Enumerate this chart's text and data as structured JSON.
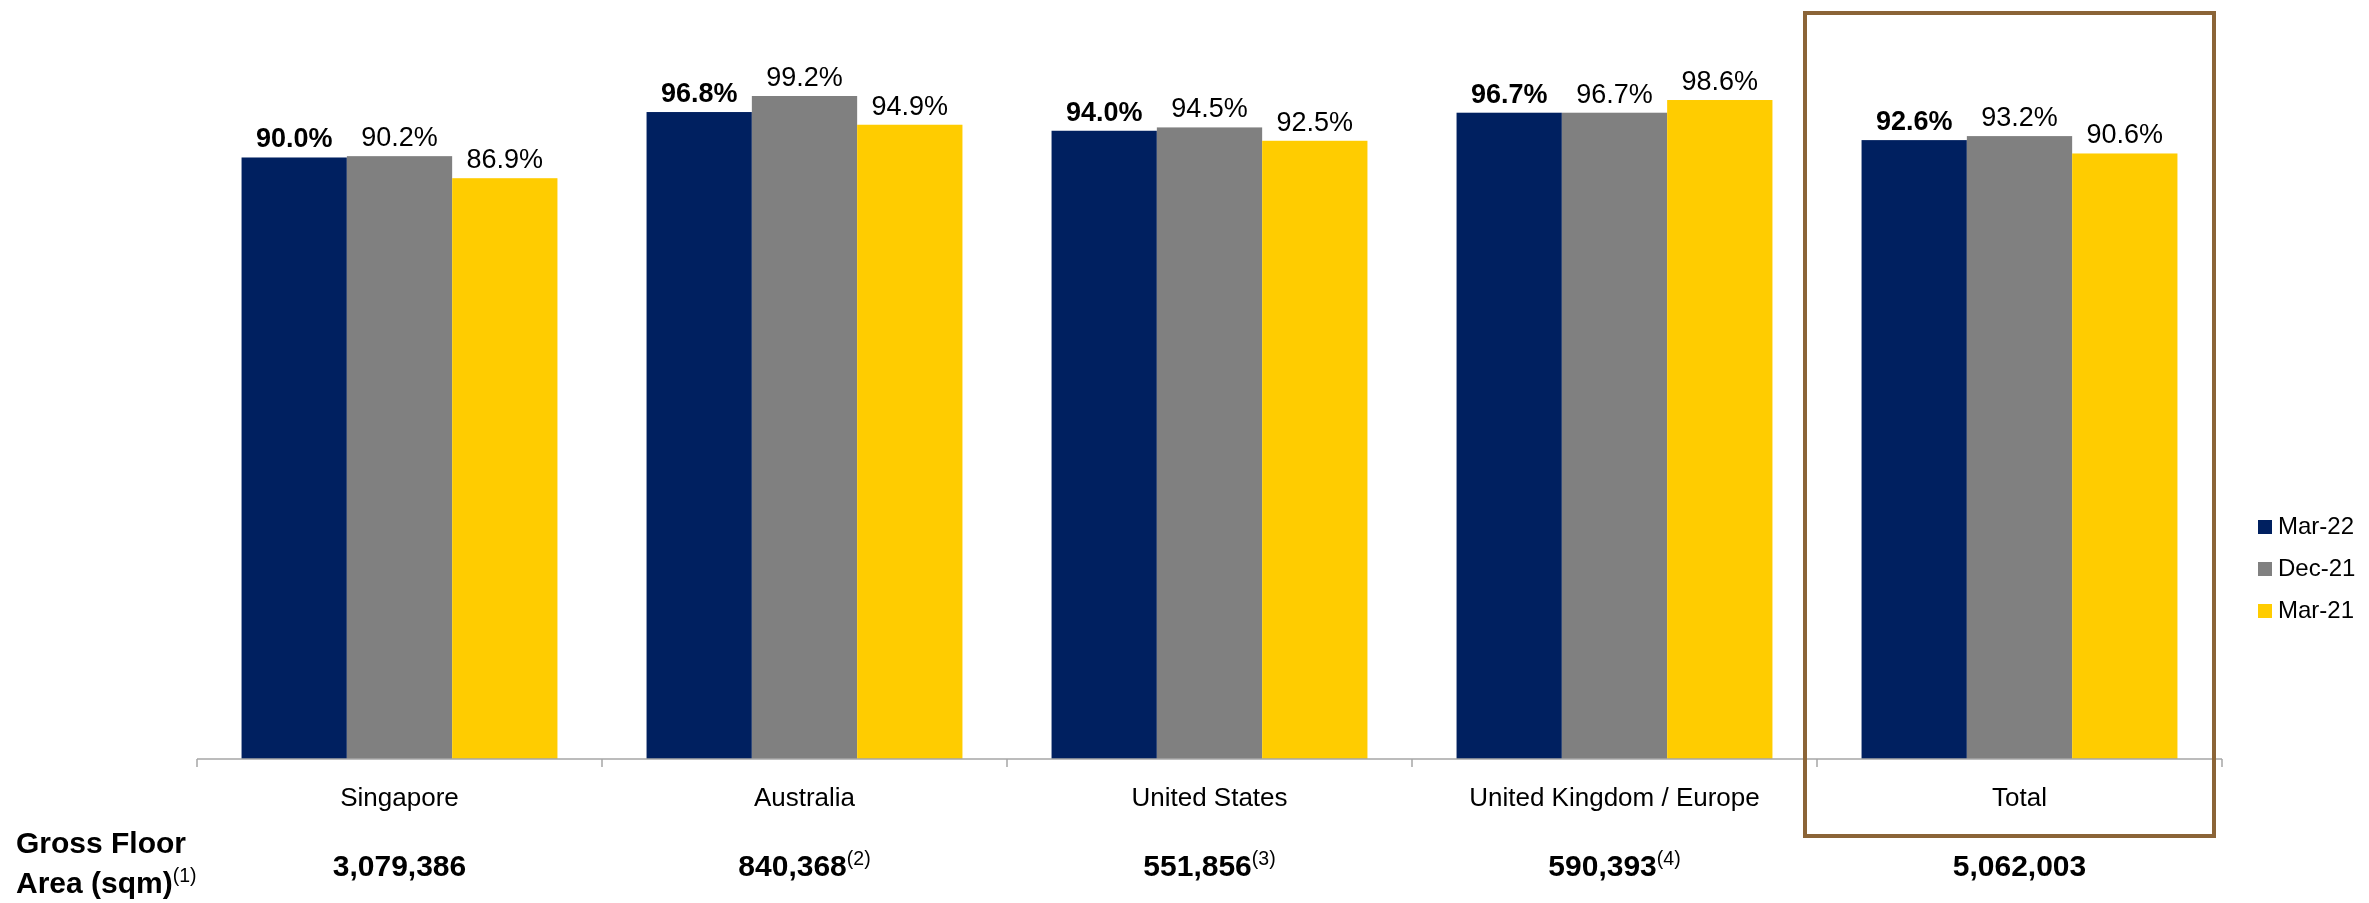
{
  "chart_data": {
    "type": "bar",
    "categories": [
      "Singapore",
      "Australia",
      "United States",
      "United Kingdom / Europe",
      "Total"
    ],
    "series": [
      {
        "name": "Mar-22",
        "color": "#002060",
        "values": [
          90.0,
          96.8,
          94.0,
          96.7,
          92.6
        ],
        "value_labels": [
          "90.0%",
          "96.8%",
          "94.0%",
          "96.7%",
          "92.6%"
        ]
      },
      {
        "name": "Dec-21",
        "color": "#808080",
        "values": [
          90.2,
          99.2,
          94.5,
          96.7,
          93.2
        ],
        "value_labels": [
          "90.2%",
          "99.2%",
          "94.5%",
          "96.7%",
          "93.2%"
        ]
      },
      {
        "name": "Mar-21",
        "color": "#ffcc00",
        "values": [
          86.9,
          94.9,
          92.5,
          98.6,
          90.6
        ],
        "value_labels": [
          "86.9%",
          "94.9%",
          "92.5%",
          "98.6%",
          "90.6%"
        ]
      }
    ],
    "legend": "right",
    "tick_labels": "x",
    "annotations": [
      "Gross Floor Area (sqm)$^{(1)}$",
      "3,079,386",
      "840,368$^{(2)}$",
      "551,856$^{(3)}$",
      "590,393$^{(4)}$",
      "5,062,003"
    ]
  }
}
